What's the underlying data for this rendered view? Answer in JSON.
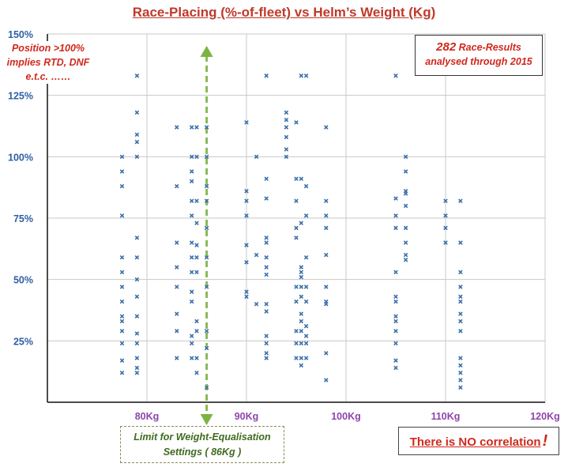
{
  "chart_data": {
    "type": "scatter",
    "title": "Race-Placing (%-of-fleet)  vs  Helm’s Weight (Kg)",
    "xlabel": "",
    "ylabel": "",
    "xlim": [
      70,
      120
    ],
    "ylim": [
      0,
      150
    ],
    "x_ticks": [
      {
        "value": 80,
        "label": "80Kg"
      },
      {
        "value": 90,
        "label": "90Kg"
      },
      {
        "value": 100,
        "label": "100Kg"
      },
      {
        "value": 110,
        "label": "110Kg"
      },
      {
        "value": 120,
        "label": "120Kg"
      }
    ],
    "y_ticks": [
      {
        "value": 25,
        "label": "25%"
      },
      {
        "value": 50,
        "label": "50%"
      },
      {
        "value": 75,
        "label": "75%"
      },
      {
        "value": 100,
        "label": "100%"
      },
      {
        "value": 125,
        "label": "125%"
      },
      {
        "value": 150,
        "label": "150%"
      }
    ],
    "grid": true,
    "limit_line": {
      "x": 86
    },
    "annotations": {
      "left_note": [
        "Position >100%",
        "implies RTD, DNF",
        "e.t.c. ……"
      ],
      "results_count": "282",
      "results_line1": " Race-Results",
      "results_line2": "analysed through 2015",
      "limit_line1": "Limit for Weight-Equalisation",
      "limit_line2": "Settings  ( 86Kg )",
      "correlation": "There is NO correlation",
      "correlation_mark": "!"
    },
    "colors": {
      "points": "#3b6fa8",
      "title": "#c0392b",
      "y_ticks": "#2e5fa3",
      "x_ticks": "#8e44ad",
      "limit_line": "#7cb342",
      "notes": "#d0281c"
    },
    "series": [
      {
        "points": [
          [
            77.5,
            100
          ],
          [
            77.5,
            94
          ],
          [
            77.5,
            88
          ],
          [
            77.5,
            76
          ],
          [
            77.5,
            59
          ],
          [
            77.5,
            53
          ],
          [
            77.5,
            47
          ],
          [
            77.5,
            41
          ],
          [
            77.5,
            35
          ],
          [
            77.5,
            33
          ],
          [
            77.5,
            29
          ],
          [
            77.5,
            24
          ],
          [
            77.5,
            17
          ],
          [
            77.5,
            12
          ],
          [
            79,
            133
          ],
          [
            79,
            118
          ],
          [
            79,
            109
          ],
          [
            79,
            106
          ],
          [
            79,
            100
          ],
          [
            79,
            67
          ],
          [
            79,
            59
          ],
          [
            79,
            50
          ],
          [
            79,
            43
          ],
          [
            79,
            35
          ],
          [
            79,
            28
          ],
          [
            79,
            24
          ],
          [
            79,
            18
          ],
          [
            79,
            14
          ],
          [
            79,
            12
          ],
          [
            83,
            112
          ],
          [
            83,
            88
          ],
          [
            83,
            65
          ],
          [
            83,
            55
          ],
          [
            83,
            47
          ],
          [
            83,
            36
          ],
          [
            83,
            29
          ],
          [
            83,
            18
          ],
          [
            84.5,
            112
          ],
          [
            84.5,
            100
          ],
          [
            84.5,
            94
          ],
          [
            84.5,
            90
          ],
          [
            84.5,
            82
          ],
          [
            84.5,
            76
          ],
          [
            84.5,
            65
          ],
          [
            84.5,
            59
          ],
          [
            84.5,
            53
          ],
          [
            84.5,
            45
          ],
          [
            84.5,
            41
          ],
          [
            84.5,
            27
          ],
          [
            84.5,
            24
          ],
          [
            84.5,
            18
          ],
          [
            85,
            112
          ],
          [
            85,
            100
          ],
          [
            85,
            82
          ],
          [
            85,
            73
          ],
          [
            85,
            64
          ],
          [
            85,
            59
          ],
          [
            85,
            53
          ],
          [
            85,
            33
          ],
          [
            85,
            29
          ],
          [
            85,
            18
          ],
          [
            85,
            12
          ],
          [
            86,
            112
          ],
          [
            86,
            100
          ],
          [
            86,
            88
          ],
          [
            86,
            82
          ],
          [
            86,
            71
          ],
          [
            86,
            59
          ],
          [
            86,
            47
          ],
          [
            86,
            29
          ],
          [
            86,
            22
          ],
          [
            86,
            6
          ],
          [
            90,
            114
          ],
          [
            90,
            86
          ],
          [
            90,
            82
          ],
          [
            90,
            76
          ],
          [
            90,
            64
          ],
          [
            90,
            57
          ],
          [
            90,
            45
          ],
          [
            90,
            43
          ],
          [
            91,
            100
          ],
          [
            91,
            60
          ],
          [
            91,
            40
          ],
          [
            92,
            133
          ],
          [
            92,
            91
          ],
          [
            92,
            83
          ],
          [
            92,
            67
          ],
          [
            92,
            65
          ],
          [
            92,
            59
          ],
          [
            92,
            55
          ],
          [
            92,
            52
          ],
          [
            92,
            40
          ],
          [
            92,
            37
          ],
          [
            92,
            27
          ],
          [
            92,
            24
          ],
          [
            92,
            20
          ],
          [
            92,
            18
          ],
          [
            94,
            118
          ],
          [
            94,
            115
          ],
          [
            94,
            112
          ],
          [
            94,
            108
          ],
          [
            94,
            103
          ],
          [
            94,
            100
          ],
          [
            95,
            114
          ],
          [
            95,
            91
          ],
          [
            95,
            82
          ],
          [
            95,
            71
          ],
          [
            95,
            67
          ],
          [
            95,
            47
          ],
          [
            95,
            41
          ],
          [
            95,
            29
          ],
          [
            95,
            24
          ],
          [
            95,
            18
          ],
          [
            95.5,
            133
          ],
          [
            95.5,
            91
          ],
          [
            95.5,
            73
          ],
          [
            95.5,
            55
          ],
          [
            95.5,
            53
          ],
          [
            95.5,
            51
          ],
          [
            95.5,
            47
          ],
          [
            95.5,
            43
          ],
          [
            95.5,
            36
          ],
          [
            95.5,
            33
          ],
          [
            95.5,
            29
          ],
          [
            95.5,
            24
          ],
          [
            95.5,
            18
          ],
          [
            95.5,
            15
          ],
          [
            96,
            133
          ],
          [
            96,
            88
          ],
          [
            96,
            76
          ],
          [
            96,
            59
          ],
          [
            96,
            47
          ],
          [
            96,
            41
          ],
          [
            96,
            31
          ],
          [
            96,
            27
          ],
          [
            96,
            24
          ],
          [
            96,
            18
          ],
          [
            98,
            112
          ],
          [
            98,
            82
          ],
          [
            98,
            76
          ],
          [
            98,
            71
          ],
          [
            98,
            60
          ],
          [
            98,
            47
          ],
          [
            98,
            41
          ],
          [
            98,
            40
          ],
          [
            98,
            20
          ],
          [
            98,
            9
          ],
          [
            105,
            133
          ],
          [
            105,
            83
          ],
          [
            105,
            76
          ],
          [
            105,
            71
          ],
          [
            105,
            53
          ],
          [
            105,
            43
          ],
          [
            105,
            41
          ],
          [
            105,
            35
          ],
          [
            105,
            33
          ],
          [
            105,
            29
          ],
          [
            105,
            24
          ],
          [
            105,
            17
          ],
          [
            105,
            14
          ],
          [
            106,
            100
          ],
          [
            106,
            94
          ],
          [
            106,
            86
          ],
          [
            106,
            85
          ],
          [
            106,
            80
          ],
          [
            106,
            71
          ],
          [
            106,
            65
          ],
          [
            106,
            60
          ],
          [
            106,
            58
          ],
          [
            110,
            82
          ],
          [
            110,
            76
          ],
          [
            110,
            71
          ],
          [
            110,
            65
          ],
          [
            111.5,
            82
          ],
          [
            111.5,
            65
          ],
          [
            111.5,
            53
          ],
          [
            111.5,
            47
          ],
          [
            111.5,
            43
          ],
          [
            111.5,
            41
          ],
          [
            111.5,
            36
          ],
          [
            111.5,
            33
          ],
          [
            111.5,
            29
          ],
          [
            111.5,
            18
          ],
          [
            111.5,
            15
          ],
          [
            111.5,
            12
          ],
          [
            111.5,
            9
          ],
          [
            111.5,
            6
          ]
        ]
      }
    ]
  }
}
